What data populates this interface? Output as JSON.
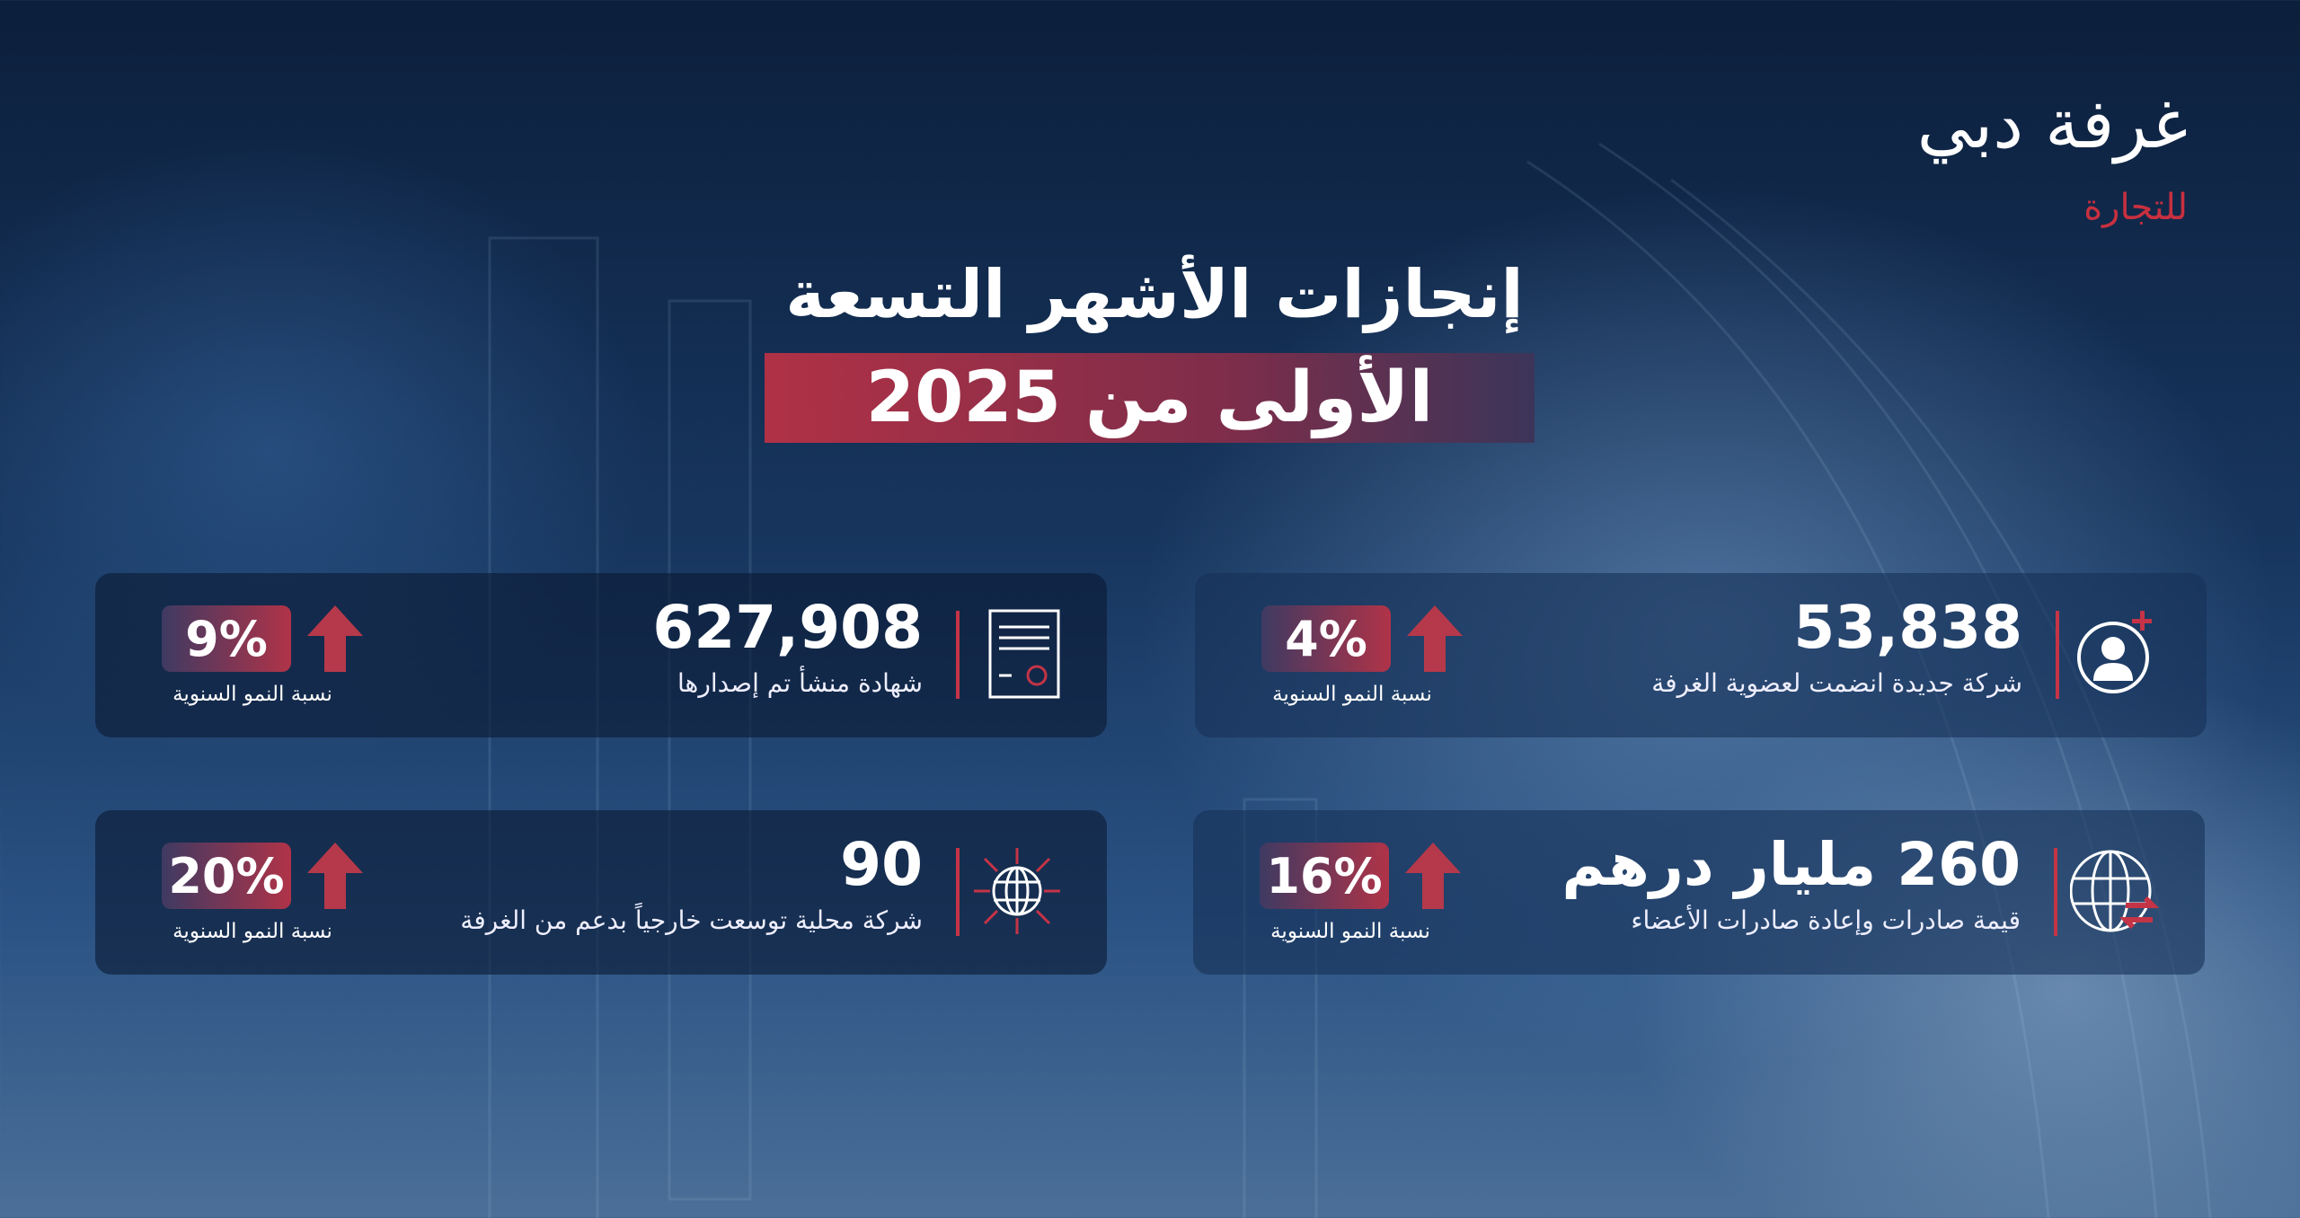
{
  "logo": {
    "name": "غرفة دبي",
    "tagline": "للتجارة"
  },
  "title": {
    "line1": "إنجازات الأشهر التسعة",
    "line2": "الأولى من 2025"
  },
  "colors": {
    "accent": "#c43446",
    "navy": "#0c1f3c"
  },
  "cards": [
    {
      "value": "53,838",
      "label": "شركة جديدة انضمت لعضوية الغرفة",
      "growth": "4%",
      "growth_label": "نسبة النمو السنوية",
      "icon": "user-plus-icon"
    },
    {
      "value": "627,908",
      "label": "شهادة منشأ تم إصدارها",
      "growth": "9%",
      "growth_label": "نسبة النمو السنوية",
      "icon": "certificate-icon"
    },
    {
      "value": "260 مليار درهم",
      "label": "قيمة صادرات وإعادة صادرات الأعضاء",
      "growth": "16%",
      "growth_label": "نسبة النمو السنوية",
      "icon": "globe-exchange-icon"
    },
    {
      "value": "90",
      "label": "شركة محلية توسعت خارجياً بدعم من الغرفة",
      "growth": "20%",
      "growth_label": "نسبة النمو السنوية",
      "icon": "globe-expand-icon"
    }
  ]
}
